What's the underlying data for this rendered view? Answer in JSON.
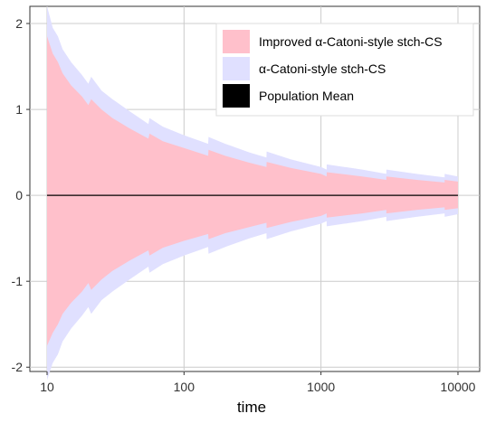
{
  "chart_data": {
    "type": "area",
    "title": "",
    "xlabel": "time",
    "ylabel": "",
    "x_scale": "log",
    "xlim": [
      10,
      10000
    ],
    "ylim": [
      -2.05,
      2.2
    ],
    "x_ticks": [
      {
        "value": 10,
        "label": "10"
      },
      {
        "value": 100,
        "label": "100"
      },
      {
        "value": 1000,
        "label": "1000"
      },
      {
        "value": 10000,
        "label": "10000"
      }
    ],
    "y_ticks": [
      {
        "value": -2,
        "label": "-2"
      },
      {
        "value": -1,
        "label": "-1"
      },
      {
        "value": 0,
        "label": "0"
      },
      {
        "value": 1,
        "label": "1"
      },
      {
        "value": 2,
        "label": "2"
      }
    ],
    "grid": true,
    "legend_position": "top-right",
    "series": [
      {
        "name": "α-Catoni-style stch-CS",
        "color": "#e0e0ff",
        "x": [
          10,
          11,
          12,
          13,
          15,
          18,
          20,
          21,
          25,
          30,
          40,
          55,
          56,
          70,
          100,
          150,
          151,
          200,
          300,
          400,
          401,
          600,
          1000,
          1100,
          1101,
          2000,
          3000,
          3001,
          5000,
          8000,
          8001,
          10000
        ],
        "upper": [
          2.2,
          1.95,
          1.85,
          1.7,
          1.55,
          1.4,
          1.3,
          1.38,
          1.22,
          1.12,
          0.98,
          0.83,
          0.9,
          0.8,
          0.7,
          0.6,
          0.68,
          0.6,
          0.5,
          0.44,
          0.51,
          0.42,
          0.33,
          0.3,
          0.36,
          0.3,
          0.25,
          0.3,
          0.25,
          0.21,
          0.25,
          0.22
        ],
        "lower": [
          -2.15,
          -1.95,
          -1.85,
          -1.7,
          -1.55,
          -1.4,
          -1.3,
          -1.38,
          -1.22,
          -1.12,
          -0.98,
          -0.83,
          -0.9,
          -0.8,
          -0.7,
          -0.6,
          -0.68,
          -0.6,
          -0.5,
          -0.44,
          -0.51,
          -0.42,
          -0.33,
          -0.3,
          -0.36,
          -0.3,
          -0.25,
          -0.3,
          -0.25,
          -0.21,
          -0.25,
          -0.22
        ]
      },
      {
        "name": "Improved α-Catoni-style stch-CS",
        "color": "#ffc0cb",
        "x": [
          10,
          11,
          12,
          13,
          15,
          18,
          20,
          21,
          25,
          30,
          40,
          55,
          56,
          70,
          100,
          150,
          151,
          200,
          300,
          400,
          401,
          600,
          1000,
          1100,
          1101,
          2000,
          3000,
          3001,
          5000,
          8000,
          8001,
          10000
        ],
        "upper": [
          1.85,
          1.65,
          1.55,
          1.42,
          1.28,
          1.15,
          1.05,
          1.12,
          1.0,
          0.9,
          0.78,
          0.66,
          0.72,
          0.63,
          0.55,
          0.46,
          0.53,
          0.46,
          0.38,
          0.33,
          0.39,
          0.32,
          0.25,
          0.22,
          0.27,
          0.22,
          0.18,
          0.22,
          0.18,
          0.15,
          0.18,
          0.16
        ],
        "lower": [
          -1.75,
          -1.6,
          -1.5,
          -1.38,
          -1.25,
          -1.12,
          -1.02,
          -1.1,
          -0.98,
          -0.88,
          -0.76,
          -0.64,
          -0.7,
          -0.61,
          -0.53,
          -0.45,
          -0.51,
          -0.44,
          -0.37,
          -0.32,
          -0.38,
          -0.31,
          -0.24,
          -0.21,
          -0.26,
          -0.21,
          -0.17,
          -0.21,
          -0.17,
          -0.14,
          -0.17,
          -0.15
        ]
      },
      {
        "name": "Population Mean",
        "color": "#000000",
        "x": [
          10,
          10000
        ],
        "values": [
          0,
          0
        ]
      }
    ],
    "legend": [
      {
        "label": "Improved α-Catoni-style stch-CS",
        "color": "#ffc0cb"
      },
      {
        "label": "α-Catoni-style stch-CS",
        "color": "#e0e0ff"
      },
      {
        "label": "Population Mean",
        "color": "#000000"
      }
    ]
  }
}
